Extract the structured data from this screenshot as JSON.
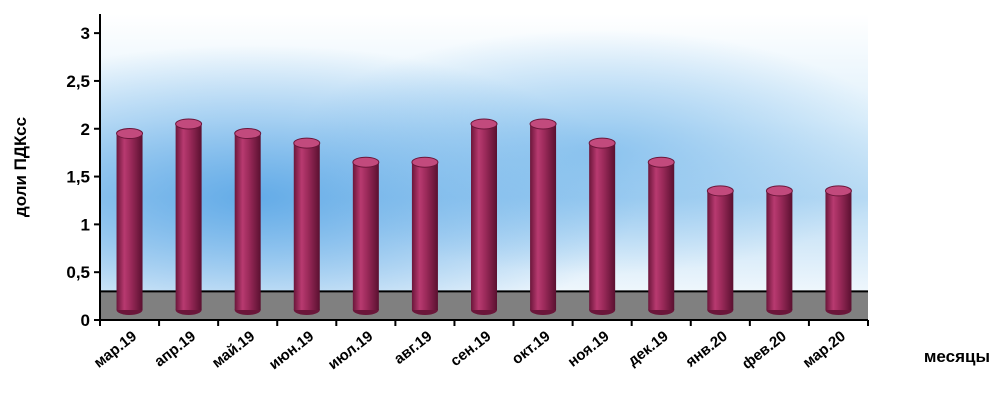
{
  "chart_data": {
    "type": "bar",
    "title": "",
    "xlabel": "месяцы",
    "ylabel": "доли ПДКсс",
    "ylim": [
      0,
      3.2
    ],
    "yticks": [
      0,
      0.5,
      1,
      1.5,
      2,
      2.5,
      3
    ],
    "ytick_labels": [
      "0",
      "0,5",
      "1",
      "1,5",
      "2",
      "2,5",
      "3"
    ],
    "categories": [
      "мар.19",
      "апр.19",
      "май.19",
      "июн.19",
      "июл.19",
      "авг.19",
      "сен.19",
      "окт.19",
      "ноя.19",
      "дек.19",
      "янв.20",
      "фев.20",
      "мар.20"
    ],
    "values": [
      1.95,
      2.05,
      1.95,
      1.85,
      1.65,
      1.65,
      2.05,
      2.05,
      1.85,
      1.65,
      1.35,
      1.35,
      1.35
    ],
    "reference_line": {
      "value": 0.3,
      "color": "#808080"
    },
    "grid": false,
    "legend": "none",
    "colors": {
      "bar": "#9b2a5a",
      "bar_dark": "#6b163a",
      "bar_top": "#c24a7d",
      "floor": "#808080"
    },
    "style": "3d-cylinder"
  }
}
